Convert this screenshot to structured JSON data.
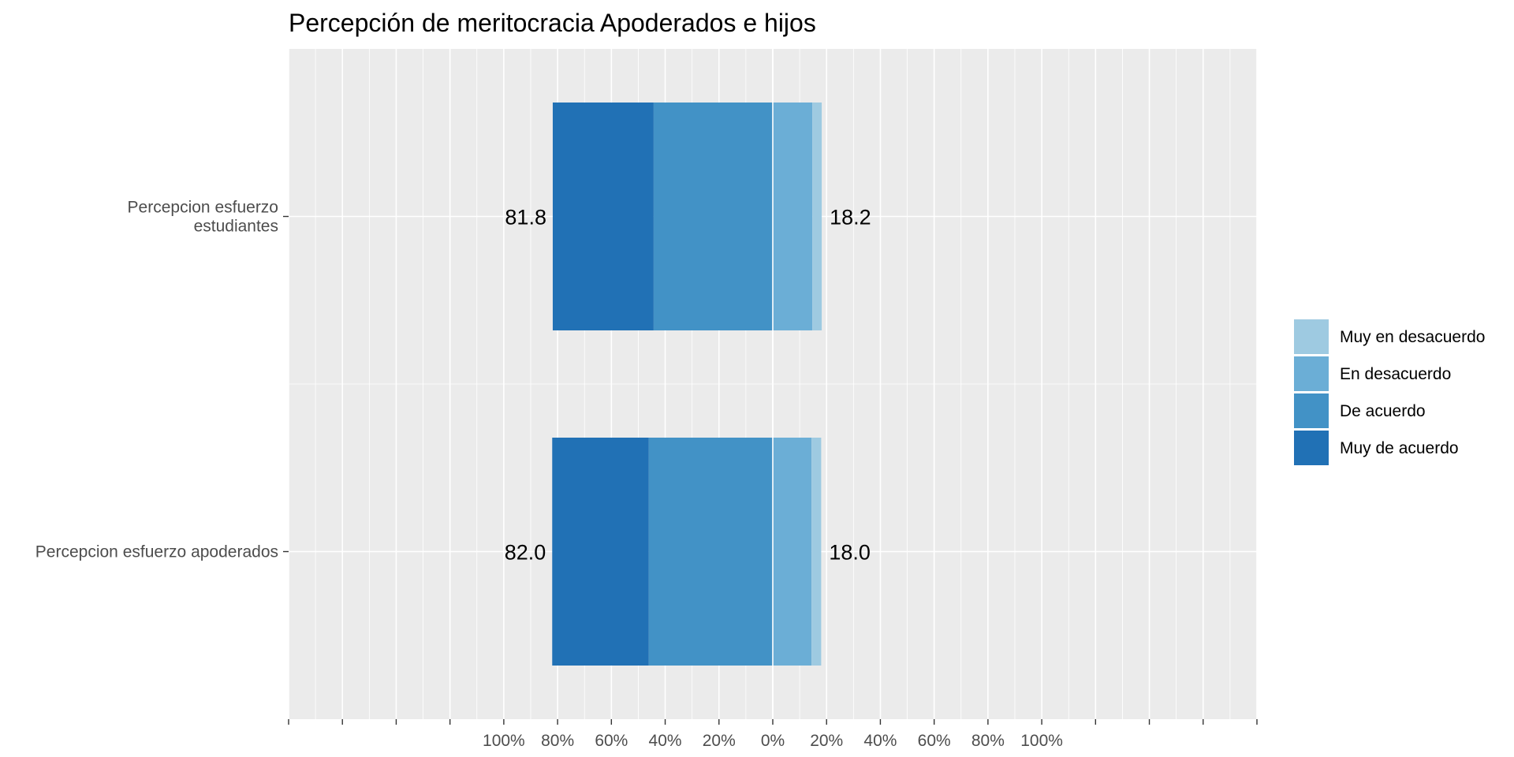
{
  "chart_data": {
    "type": "bar",
    "orientation": "horizontal",
    "stacked": "diverging",
    "title": "Percepción de meritocracia Apoderados e hijos",
    "xlabel": "",
    "ylabel": "",
    "xlim": [
      -180,
      180
    ],
    "x_tick_values": [
      -100,
      -80,
      -60,
      -40,
      -20,
      0,
      20,
      40,
      60,
      80,
      100
    ],
    "x_tick_labels": [
      "100%",
      "80%",
      "60%",
      "40%",
      "20%",
      "0%",
      "20%",
      "40%",
      "60%",
      "80%",
      "100%"
    ],
    "grid": true,
    "legend_position": "right",
    "categories": [
      {
        "label_lines": [
          "Percepcion esfuerzo",
          "estudiantes"
        ],
        "left_total": "81.8",
        "right_total": "18.2"
      },
      {
        "label_lines": [
          "Percepcion esfuerzo apoderados"
        ],
        "left_total": "82.0",
        "right_total": "18.0"
      }
    ],
    "series": [
      {
        "name": "Muy en desacuerdo",
        "side": "right",
        "color": "#9ecae1",
        "values": [
          3.5,
          3.6
        ]
      },
      {
        "name": "En desacuerdo",
        "side": "right",
        "color": "#6baed6",
        "values": [
          14.7,
          14.4
        ]
      },
      {
        "name": "De acuerdo",
        "side": "left",
        "color": "#4292c6",
        "values": [
          44.3,
          46.1
        ]
      },
      {
        "name": "Muy de acuerdo",
        "side": "left",
        "color": "#2171b5",
        "values": [
          37.5,
          35.9
        ]
      }
    ]
  }
}
